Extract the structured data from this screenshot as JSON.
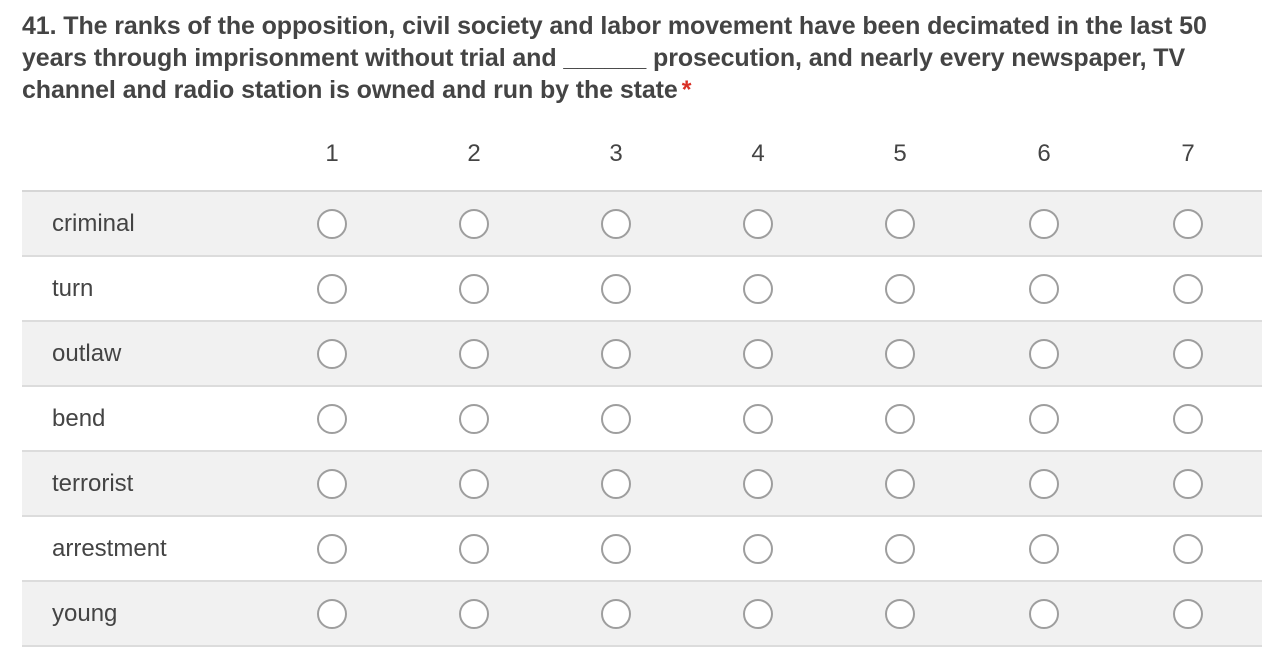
{
  "question": {
    "text": "41. The ranks of the opposition, civil society and labor movement have been decimated in the last 50 years through imprisonment without trial and ______ prosecution, and nearly every newspaper, TV channel and radio station is owned and run by the state",
    "required_marker": "*"
  },
  "grid": {
    "columns": [
      "1",
      "2",
      "3",
      "4",
      "5",
      "6",
      "7"
    ],
    "rows": [
      "criminal",
      "turn",
      "outlaw",
      "bend",
      "terrorist",
      "arrestment",
      "young"
    ]
  },
  "colors": {
    "required": "#d93025",
    "row_alt_background": "#f1f1f1",
    "radio_border": "#9e9e9e"
  }
}
